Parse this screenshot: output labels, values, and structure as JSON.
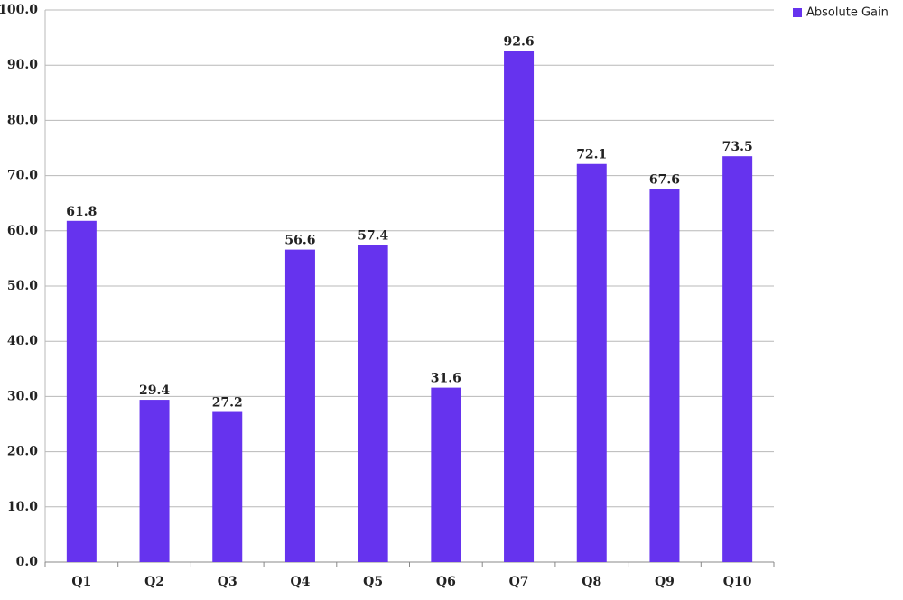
{
  "chart_data": {
    "type": "bar",
    "categories": [
      "Q1",
      "Q2",
      "Q3",
      "Q4",
      "Q5",
      "Q6",
      "Q7",
      "Q8",
      "Q9",
      "Q10"
    ],
    "series": [
      {
        "name": "Absolute Gain",
        "color": "#6633ee",
        "values": [
          61.8,
          29.4,
          27.2,
          56.6,
          57.4,
          31.6,
          92.6,
          72.1,
          67.6,
          73.5
        ]
      }
    ],
    "ylim": [
      0,
      100
    ],
    "yticks": [
      {
        "value": 0,
        "label": "0.0"
      },
      {
        "value": 10,
        "label": "10.0"
      },
      {
        "value": 20,
        "label": "20.0"
      },
      {
        "value": 30,
        "label": "30.0"
      },
      {
        "value": 40,
        "label": "40.0"
      },
      {
        "value": 50,
        "label": "50.0"
      },
      {
        "value": 60,
        "label": "60.0"
      },
      {
        "value": 70,
        "label": "70.0"
      },
      {
        "value": 80,
        "label": "80.0"
      },
      {
        "value": 90,
        "label": "90.0"
      },
      {
        "value": 100,
        "label": "100.0"
      }
    ],
    "grid": true,
    "legend": "top-right"
  }
}
